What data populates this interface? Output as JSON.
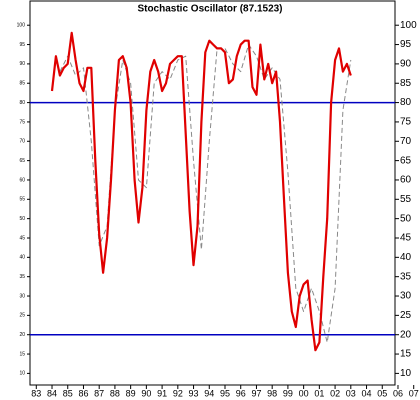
{
  "chart_data": {
    "type": "line",
    "title": "Stochastic Oscillator (87.1523)",
    "series": [
      {
        "color": "#e00000",
        "style": "solid",
        "x": [
          1984,
          1984.25,
          1984.5,
          1984.75,
          1985,
          1985.25,
          1985.5,
          1985.75,
          1986,
          1986.25,
          1986.5,
          1986.75,
          1987,
          1987.25,
          1987.5,
          1987.75,
          1988,
          1988.25,
          1988.5,
          1988.75,
          1989,
          1989.25,
          1989.5,
          1989.75,
          1990,
          1990.25,
          1990.5,
          1990.75,
          1991,
          1991.25,
          1991.5,
          1991.75,
          1992,
          1992.25,
          1992.5,
          1992.75,
          1993,
          1993.25,
          1993.5,
          1993.75,
          1994,
          1994.25,
          1994.5,
          1994.75,
          1995,
          1995.25,
          1995.5,
          1995.75,
          1996,
          1996.25,
          1996.5,
          1996.75,
          1997,
          1997.25,
          1997.5,
          1997.75,
          1998,
          1998.25,
          1998.5,
          1998.75,
          1999,
          1999.25,
          1999.5,
          1999.75,
          2000,
          2000.25,
          2000.5,
          2000.75,
          2001,
          2001.25,
          2001.5,
          2001.75,
          2002,
          2002.25,
          2002.5,
          2002.75,
          2003
        ],
        "values": [
          83,
          92,
          87,
          89,
          90,
          98,
          91,
          85,
          83,
          89,
          89,
          65,
          46,
          36,
          45,
          60,
          78,
          91,
          92,
          89,
          80,
          60,
          49,
          58,
          78,
          88,
          91,
          88,
          83,
          85,
          90,
          91,
          92,
          92,
          72,
          52,
          38,
          48,
          75,
          93,
          96,
          95,
          94,
          94,
          93,
          85,
          86,
          92,
          95,
          96,
          96,
          84,
          82,
          95,
          86,
          90,
          85,
          88,
          75,
          55,
          36,
          26,
          22,
          30,
          33,
          34,
          24,
          16,
          18,
          35,
          50,
          80,
          91,
          94,
          88,
          90,
          87
        ]
      },
      {
        "color": "#888888",
        "style": "dashed",
        "x": [
          1984.5,
          1985,
          1985.5,
          1986,
          1986.5,
          1987,
          1987.5,
          1988,
          1988.5,
          1989,
          1989.5,
          1990,
          1990.5,
          1991,
          1991.5,
          1992,
          1992.5,
          1993,
          1993.5,
          1994,
          1994.5,
          1995,
          1995.5,
          1996,
          1996.5,
          1997,
          1997.5,
          1998,
          1998.5,
          1999,
          1999.5,
          2000,
          2000.5,
          2001,
          2001.5,
          2002,
          2002.5,
          2003
        ],
        "values": [
          88,
          92,
          87,
          89,
          70,
          43,
          48,
          78,
          91,
          85,
          60,
          58,
          85,
          88,
          86,
          91,
          92,
          65,
          42,
          70,
          94,
          94,
          90,
          88,
          95,
          92,
          86,
          89,
          86,
          62,
          32,
          26,
          32,
          26,
          18,
          32,
          78,
          91
        ]
      }
    ],
    "hlines": [
      {
        "value": 80,
        "color": "#0000c0"
      },
      {
        "value": 20,
        "color": "#0000c0"
      }
    ],
    "xlim": [
      1982.6,
      2007.4
    ],
    "xticks": [
      {
        "value": 1983,
        "label": "83"
      },
      {
        "value": 1984,
        "label": "84"
      },
      {
        "value": 1985,
        "label": "85"
      },
      {
        "value": 1986,
        "label": "86"
      },
      {
        "value": 1987,
        "label": "87"
      },
      {
        "value": 1988,
        "label": "88"
      },
      {
        "value": 1989,
        "label": "89"
      },
      {
        "value": 1990,
        "label": "90"
      },
      {
        "value": 1991,
        "label": "91"
      },
      {
        "value": 1992,
        "label": "92"
      },
      {
        "value": 1993,
        "label": "93"
      },
      {
        "value": 1994,
        "label": "94"
      },
      {
        "value": 1995,
        "label": "95"
      },
      {
        "value": 1996,
        "label": "96"
      },
      {
        "value": 1997,
        "label": "97"
      },
      {
        "value": 1998,
        "label": "98"
      },
      {
        "value": 1999,
        "label": "99"
      },
      {
        "value": 2000,
        "label": "00"
      },
      {
        "value": 2001,
        "label": "01"
      },
      {
        "value": 2002,
        "label": "02"
      },
      {
        "value": 2003,
        "label": "03"
      },
      {
        "value": 2004,
        "label": "04"
      },
      {
        "value": 2005,
        "label": "05"
      },
      {
        "value": 2006,
        "label": "06"
      },
      {
        "value": 2007,
        "label": "07"
      }
    ],
    "ylim": [
      7,
      106
    ],
    "yticks": [
      100,
      95,
      90,
      85,
      80,
      75,
      70,
      65,
      60,
      55,
      50,
      45,
      40,
      35,
      30,
      25,
      20,
      15,
      10
    ]
  }
}
